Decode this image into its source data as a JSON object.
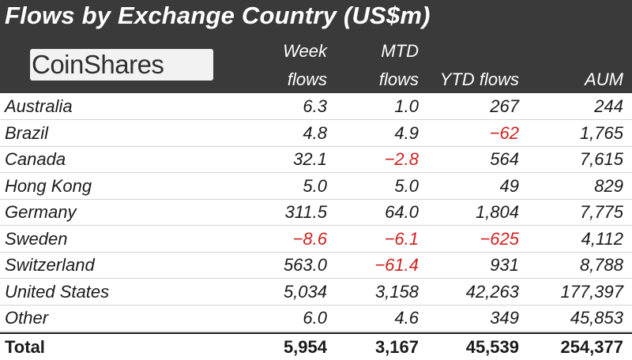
{
  "title": "Flows by Exchange Country (US$m)",
  "logo_text": "CoinShares",
  "columns": {
    "week": [
      "Week",
      "flows"
    ],
    "mtd": [
      "MTD",
      "flows"
    ],
    "ytd": "YTD flows",
    "aum": "AUM"
  },
  "colors": {
    "header_bg": "#3a3a3a",
    "negative": "#d11f1f",
    "text": "#1a1a1a"
  },
  "rows": [
    {
      "country": "Australia",
      "week": "6.3",
      "mtd": "1.0",
      "ytd": "267",
      "aum": "244"
    },
    {
      "country": "Brazil",
      "week": "4.8",
      "mtd": "4.9",
      "ytd": "-62",
      "aum": "1,765"
    },
    {
      "country": "Canada",
      "week": "32.1",
      "mtd": "-2.8",
      "ytd": "564",
      "aum": "7,615"
    },
    {
      "country": "Hong Kong",
      "week": "5.0",
      "mtd": "5.0",
      "ytd": "49",
      "aum": "829"
    },
    {
      "country": "Germany",
      "week": "311.5",
      "mtd": "64.0",
      "ytd": "1,804",
      "aum": "7,775"
    },
    {
      "country": "Sweden",
      "week": "-8.6",
      "mtd": "-6.1",
      "ytd": "-625",
      "aum": "4,112"
    },
    {
      "country": "Switzerland",
      "week": "563.0",
      "mtd": "-61.4",
      "ytd": "931",
      "aum": "8,788"
    },
    {
      "country": "United States",
      "week": "5,034",
      "mtd": "3,158",
      "ytd": "42,263",
      "aum": "177,397"
    },
    {
      "country": "Other",
      "week": "6.0",
      "mtd": "4.6",
      "ytd": "349",
      "aum": "45,853"
    }
  ],
  "total": {
    "country": "Total",
    "week": "5,954",
    "mtd": "3,167",
    "ytd": "45,539",
    "aum": "254,377"
  }
}
